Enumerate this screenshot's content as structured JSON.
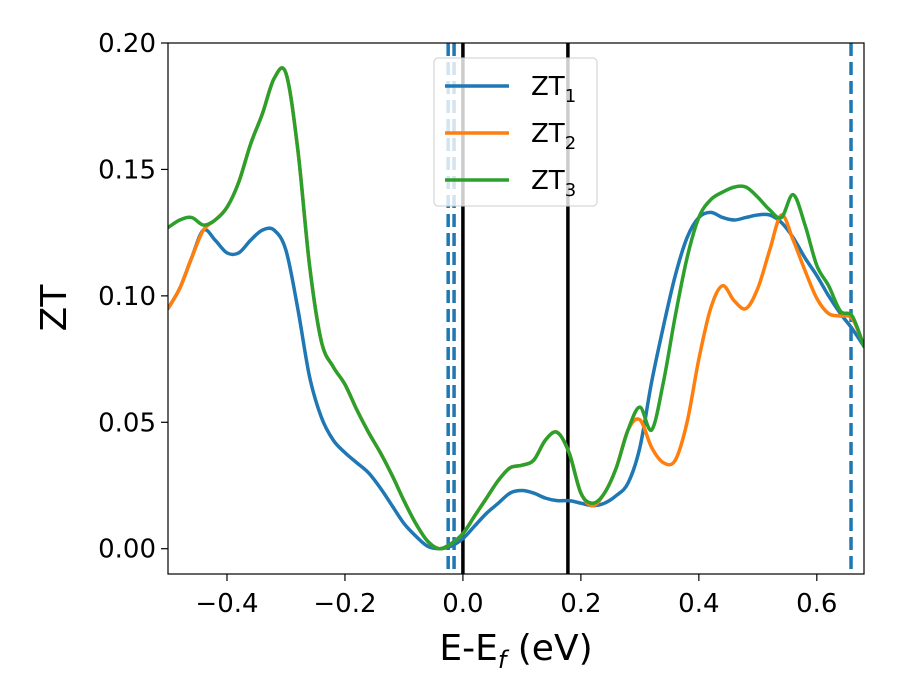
{
  "chart_data": {
    "type": "line",
    "xlabel_main": "E-E",
    "xlabel_sub": "f",
    "xlabel_unit": " (eV)",
    "ylabel": "ZT",
    "xlim": [
      -0.5,
      0.68
    ],
    "ylim": [
      -0.01,
      0.2
    ],
    "xticks": [
      -0.4,
      -0.2,
      0.0,
      0.2,
      0.4,
      0.6
    ],
    "xtick_labels": [
      "−0.4",
      "−0.2",
      "0.0",
      "0.2",
      "0.4",
      "0.6"
    ],
    "yticks": [
      0.0,
      0.05,
      0.1,
      0.15,
      0.2
    ],
    "ytick_labels": [
      "0.00",
      "0.05",
      "0.10",
      "0.15",
      "0.20"
    ],
    "legend_position": "top-center",
    "series": [
      {
        "name": "ZT",
        "name_sub": "1",
        "color": "#1f77b4",
        "x": [
          -0.5,
          -0.48,
          -0.46,
          -0.44,
          -0.42,
          -0.4,
          -0.38,
          -0.36,
          -0.34,
          -0.32,
          -0.3,
          -0.28,
          -0.26,
          -0.24,
          -0.22,
          -0.2,
          -0.18,
          -0.16,
          -0.14,
          -0.12,
          -0.1,
          -0.08,
          -0.06,
          -0.04,
          -0.02,
          0.0,
          0.02,
          0.04,
          0.06,
          0.08,
          0.1,
          0.12,
          0.14,
          0.16,
          0.18,
          0.2,
          0.22,
          0.24,
          0.26,
          0.28,
          0.3,
          0.32,
          0.34,
          0.36,
          0.38,
          0.4,
          0.42,
          0.44,
          0.46,
          0.48,
          0.5,
          0.52,
          0.54,
          0.56,
          0.58,
          0.6,
          0.62,
          0.64,
          0.66,
          0.68
        ],
        "y": [
          0.095,
          0.103,
          0.115,
          0.126,
          0.122,
          0.117,
          0.117,
          0.122,
          0.126,
          0.126,
          0.118,
          0.095,
          0.068,
          0.052,
          0.043,
          0.038,
          0.034,
          0.03,
          0.024,
          0.017,
          0.01,
          0.005,
          0.001,
          0.0,
          0.001,
          0.004,
          0.009,
          0.014,
          0.018,
          0.022,
          0.023,
          0.022,
          0.02,
          0.019,
          0.019,
          0.018,
          0.017,
          0.018,
          0.021,
          0.026,
          0.04,
          0.066,
          0.088,
          0.108,
          0.123,
          0.131,
          0.133,
          0.131,
          0.13,
          0.131,
          0.132,
          0.132,
          0.129,
          0.123,
          0.115,
          0.108,
          0.1,
          0.093,
          0.087,
          0.08
        ]
      },
      {
        "name": "ZT",
        "name_sub": "2",
        "color": "#ff7f0e",
        "x": [
          -0.5,
          -0.48,
          -0.46,
          -0.44,
          -0.42,
          -0.4,
          -0.38,
          -0.36,
          -0.34,
          -0.32,
          -0.3,
          -0.28,
          -0.26,
          -0.24,
          -0.22,
          -0.2,
          -0.18,
          -0.16,
          -0.14,
          -0.12,
          -0.1,
          -0.08,
          -0.06,
          -0.04,
          -0.02,
          0.0,
          0.02,
          0.04,
          0.06,
          0.08,
          0.1,
          0.12,
          0.14,
          0.16,
          0.18,
          0.2,
          0.22,
          0.24,
          0.26,
          0.28,
          0.3,
          0.32,
          0.34,
          0.36,
          0.38,
          0.4,
          0.42,
          0.44,
          0.46,
          0.48,
          0.5,
          0.52,
          0.54,
          0.56,
          0.58,
          0.6,
          0.62,
          0.64,
          0.66,
          0.68
        ],
        "y": [
          0.095,
          0.103,
          0.115,
          0.126,
          0.13,
          0.135,
          0.145,
          0.16,
          0.172,
          0.186,
          0.188,
          0.158,
          0.112,
          0.082,
          0.072,
          0.065,
          0.055,
          0.046,
          0.038,
          0.029,
          0.019,
          0.01,
          0.003,
          0.0,
          0.002,
          0.006,
          0.013,
          0.02,
          0.027,
          0.032,
          0.033,
          0.035,
          0.043,
          0.046,
          0.038,
          0.022,
          0.017,
          0.022,
          0.032,
          0.047,
          0.051,
          0.04,
          0.034,
          0.035,
          0.05,
          0.075,
          0.095,
          0.104,
          0.098,
          0.095,
          0.103,
          0.118,
          0.132,
          0.122,
          0.11,
          0.099,
          0.093,
          0.092,
          0.091,
          0.08
        ]
      },
      {
        "name": "ZT",
        "name_sub": "3",
        "color": "#2ca02c",
        "x": [
          -0.5,
          -0.48,
          -0.46,
          -0.44,
          -0.42,
          -0.4,
          -0.38,
          -0.36,
          -0.34,
          -0.32,
          -0.3,
          -0.28,
          -0.26,
          -0.24,
          -0.22,
          -0.2,
          -0.18,
          -0.16,
          -0.14,
          -0.12,
          -0.1,
          -0.08,
          -0.06,
          -0.04,
          -0.02,
          0.0,
          0.02,
          0.04,
          0.06,
          0.08,
          0.1,
          0.12,
          0.14,
          0.16,
          0.18,
          0.2,
          0.22,
          0.24,
          0.26,
          0.28,
          0.3,
          0.32,
          0.34,
          0.36,
          0.38,
          0.4,
          0.42,
          0.44,
          0.46,
          0.48,
          0.5,
          0.52,
          0.54,
          0.56,
          0.58,
          0.6,
          0.62,
          0.64,
          0.66,
          0.68
        ],
        "y": [
          0.127,
          0.13,
          0.131,
          0.128,
          0.13,
          0.135,
          0.145,
          0.16,
          0.172,
          0.186,
          0.188,
          0.158,
          0.112,
          0.082,
          0.072,
          0.065,
          0.055,
          0.046,
          0.038,
          0.029,
          0.019,
          0.01,
          0.003,
          0.0,
          0.002,
          0.006,
          0.013,
          0.02,
          0.027,
          0.032,
          0.033,
          0.035,
          0.043,
          0.046,
          0.038,
          0.022,
          0.018,
          0.022,
          0.032,
          0.047,
          0.056,
          0.047,
          0.066,
          0.092,
          0.115,
          0.131,
          0.138,
          0.141,
          0.143,
          0.143,
          0.139,
          0.134,
          0.131,
          0.14,
          0.128,
          0.112,
          0.104,
          0.094,
          0.092,
          0.08
        ]
      }
    ],
    "vlines": [
      {
        "x": 0.0,
        "color": "#000000",
        "style": "solid"
      },
      {
        "x": 0.178,
        "color": "#000000",
        "style": "solid"
      },
      {
        "x": -0.025,
        "color": "#1f77b4",
        "style": "dashed"
      },
      {
        "x": -0.015,
        "color": "#1f77b4",
        "style": "dashed"
      },
      {
        "x": 0.658,
        "color": "#1f77b4",
        "style": "dashed"
      }
    ]
  }
}
